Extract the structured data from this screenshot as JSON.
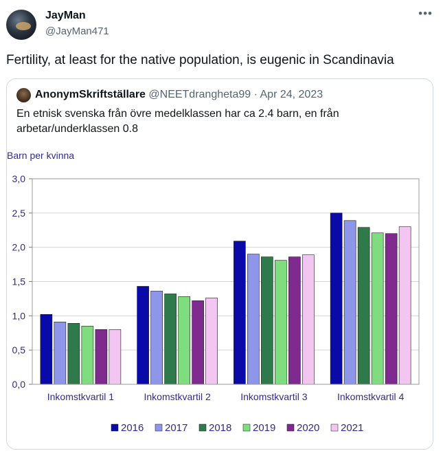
{
  "tweet": {
    "display_name": "JayMan",
    "handle": "@JayMan471",
    "more_icon": "more-horizontal-icon",
    "text": "Fertility, at least for the native population, is eugenic in Scandinavia"
  },
  "quoted_tweet": {
    "display_name": "AnonymSkriftställare",
    "meta": "@NEETdrangheta99 · Apr 24, 2023",
    "text": "En etnisk svenska från övre medelklassen har ca 2.4 barn, en från arbetar/underklassen 0.8"
  },
  "chart_data": {
    "type": "bar",
    "title": "",
    "ylabel": "Barn per kvinna",
    "xlabel": "",
    "ylim": [
      0,
      3
    ],
    "yticks": [
      "0,0",
      "0,5",
      "1,0",
      "1,5",
      "2,0",
      "2,5",
      "3,0"
    ],
    "categories": [
      "Inkomstkvartil 1",
      "Inkomstkvartil 2",
      "Inkomstkvartil 3",
      "Inkomstkvartil 4"
    ],
    "series": [
      {
        "name": "2016",
        "color": "#0a0aa8",
        "values": [
          1.02,
          1.43,
          2.09,
          2.5
        ]
      },
      {
        "name": "2017",
        "color": "#8d96e8",
        "values": [
          0.91,
          1.36,
          1.9,
          2.39
        ]
      },
      {
        "name": "2018",
        "color": "#2f7a4a",
        "values": [
          0.89,
          1.32,
          1.86,
          2.29
        ]
      },
      {
        "name": "2019",
        "color": "#7fdc7f",
        "values": [
          0.85,
          1.28,
          1.81,
          2.21
        ]
      },
      {
        "name": "2020",
        "color": "#7f2a8e",
        "values": [
          0.8,
          1.22,
          1.86,
          2.2
        ]
      },
      {
        "name": "2021",
        "color": "#f2c6f0",
        "values": [
          0.8,
          1.26,
          1.89,
          2.3
        ]
      }
    ],
    "grid": true,
    "legend_position": "bottom"
  }
}
